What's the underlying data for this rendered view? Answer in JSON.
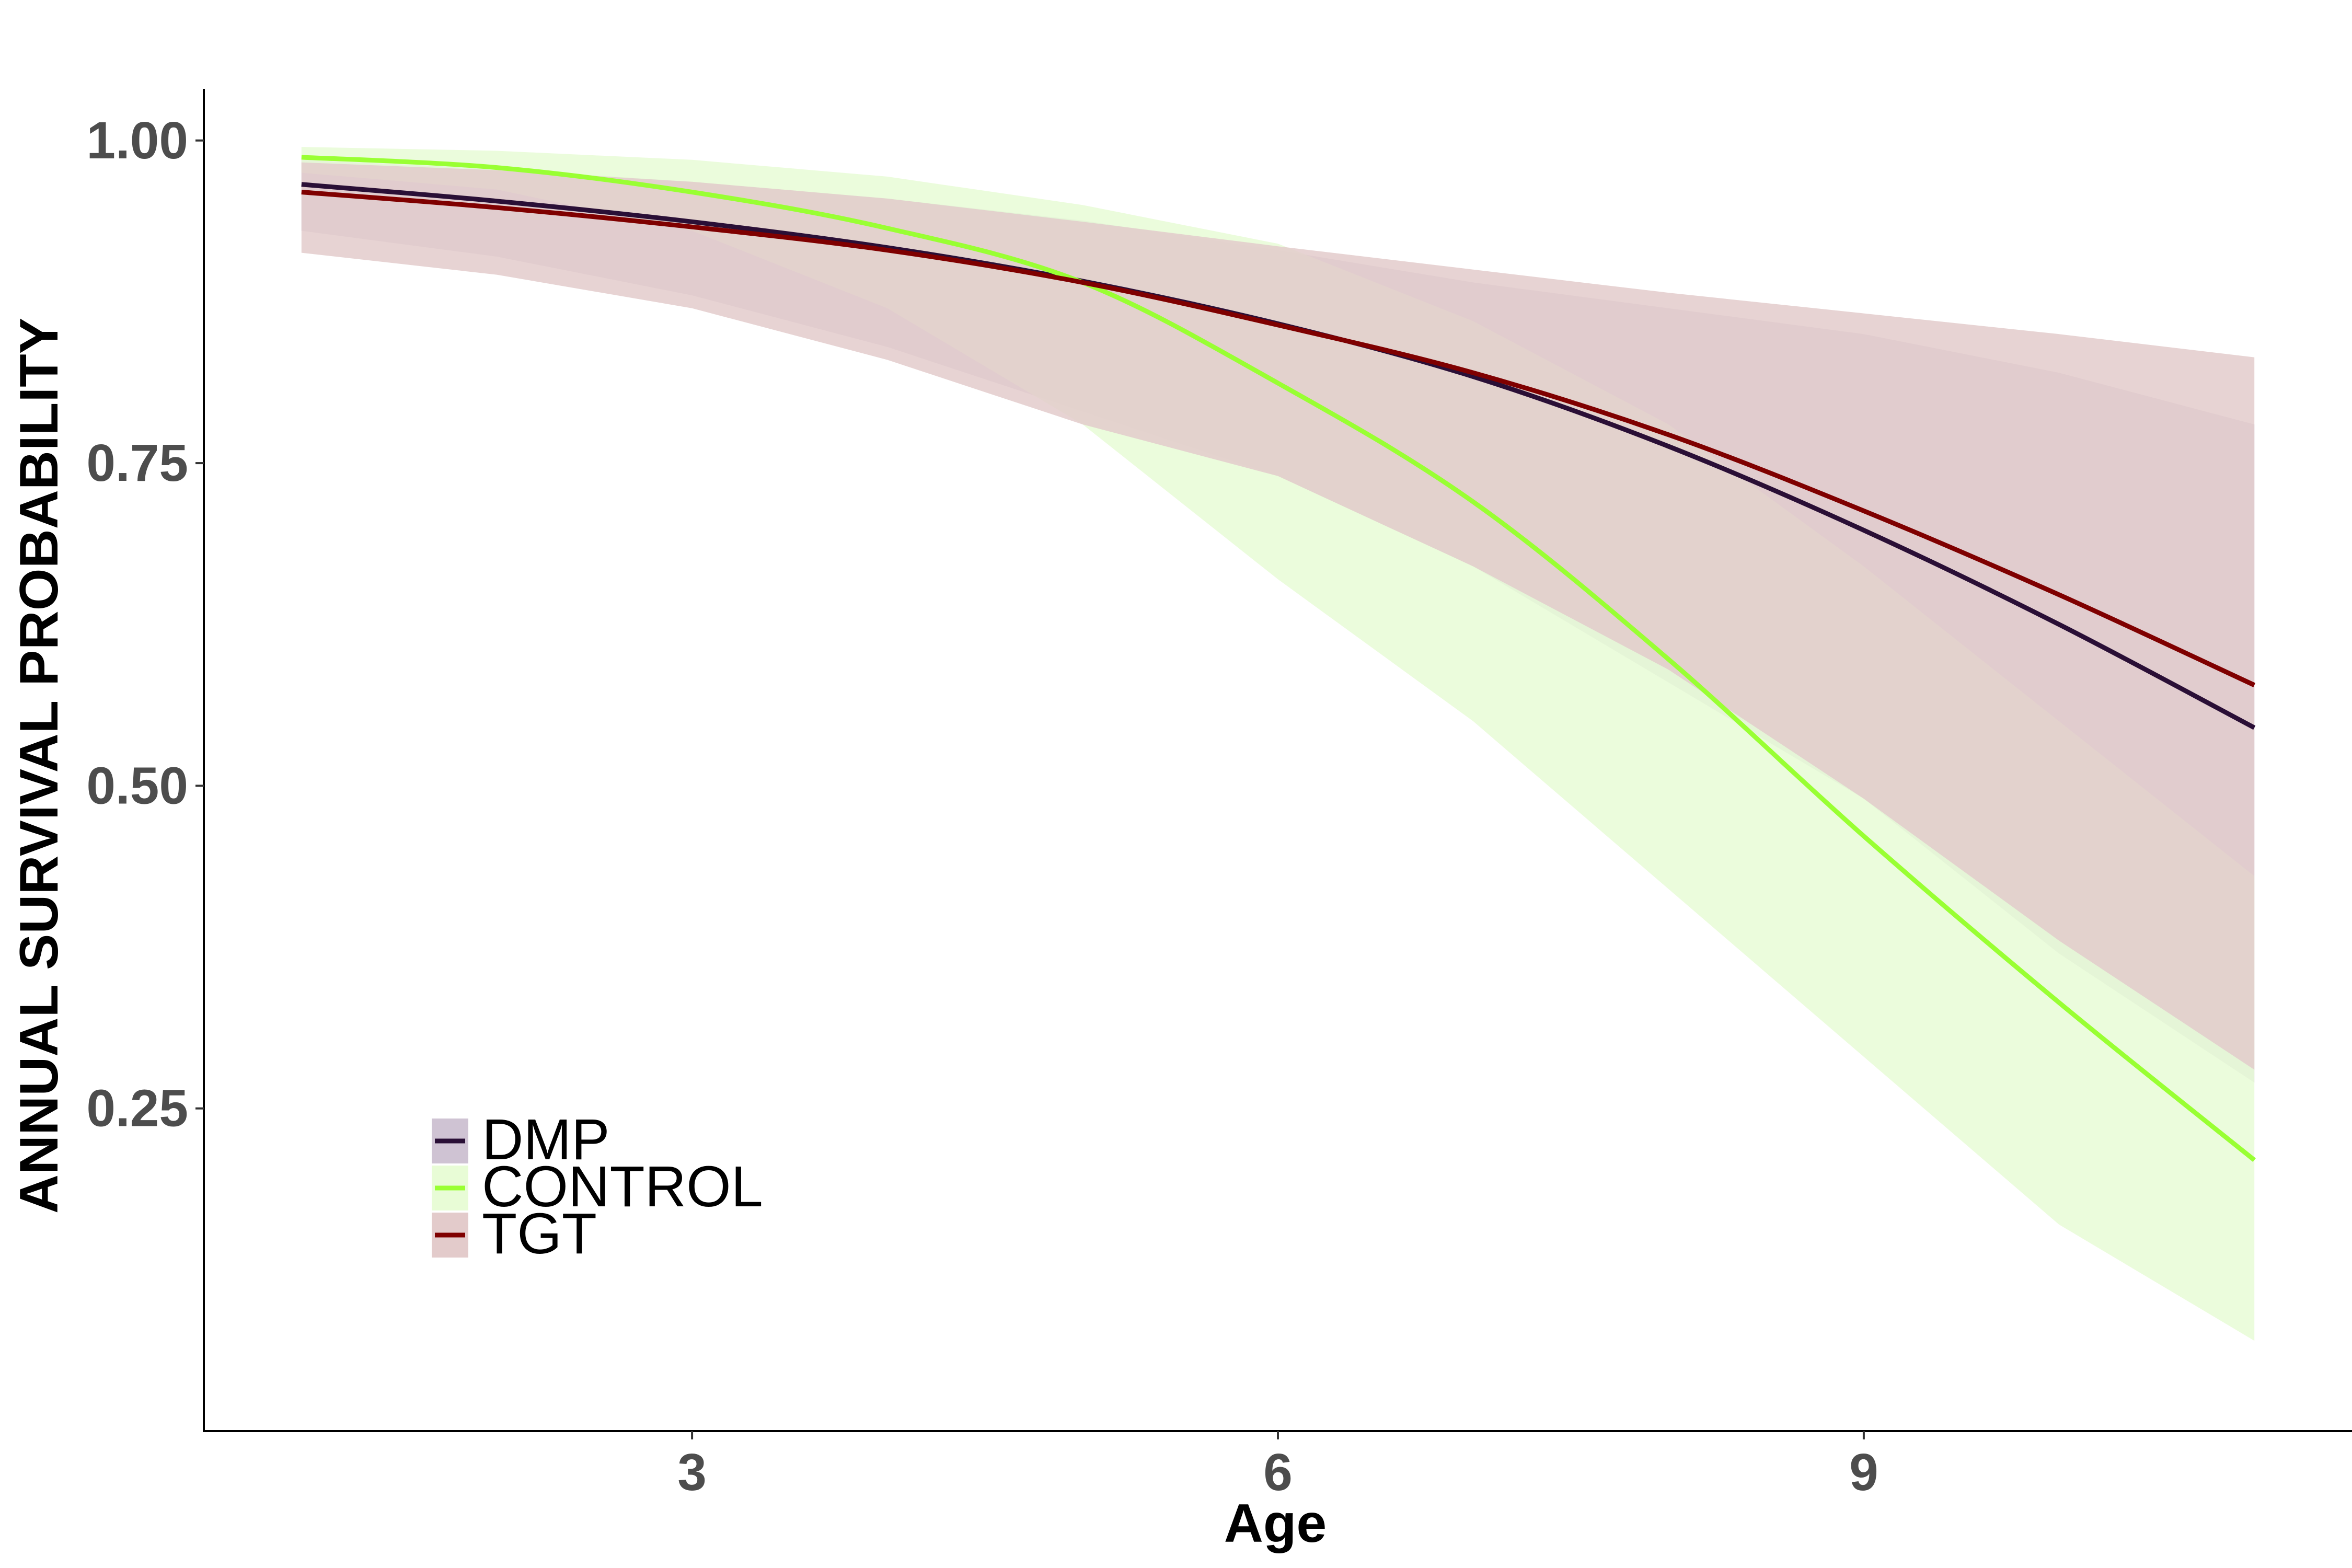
{
  "chart_data": {
    "type": "line",
    "xlabel": "Age",
    "ylabel": "ANNUAL SURVIVAL PROBABILITY",
    "xlim": [
      0.5,
      11.5
    ],
    "ylim": [
      0.0,
      1.04
    ],
    "xticks": [
      3,
      6,
      9
    ],
    "xtick_labels": [
      "3",
      "6",
      "9"
    ],
    "yticks": [
      0.25,
      0.5,
      0.75,
      1.0
    ],
    "ytick_labels": [
      "0.25",
      "0.50",
      "0.75",
      "1.00"
    ],
    "grid": false,
    "legend_position": "bottom-left",
    "x": [
      1,
      2,
      3,
      4,
      5,
      6,
      7,
      8,
      9,
      10,
      11
    ],
    "series": [
      {
        "name": "DMP",
        "color": "#2a0f36",
        "fill": "#cfc3d3",
        "values": [
          0.966,
          0.953,
          0.937,
          0.917,
          0.891,
          0.858,
          0.817,
          0.763,
          0.698,
          0.625,
          0.545
        ],
        "lower": [
          0.93,
          0.91,
          0.88,
          0.84,
          0.79,
          0.74,
          0.67,
          0.58,
          0.49,
          0.37,
          0.27
        ],
        "upper": [
          0.985,
          0.978,
          0.968,
          0.955,
          0.938,
          0.915,
          0.89,
          0.87,
          0.85,
          0.82,
          0.78
        ]
      },
      {
        "name": "CONTROL",
        "color": "#99ff33",
        "fill": "#e8fcd6",
        "values": [
          0.987,
          0.979,
          0.96,
          0.932,
          0.89,
          0.812,
          0.72,
          0.598,
          0.461,
          0.332,
          0.21
        ],
        "lower": [
          0.975,
          0.962,
          0.93,
          0.87,
          0.78,
          0.66,
          0.55,
          0.42,
          0.29,
          0.16,
          0.07
        ],
        "upper": [
          0.995,
          0.992,
          0.985,
          0.972,
          0.95,
          0.92,
          0.86,
          0.78,
          0.67,
          0.55,
          0.43
        ]
      },
      {
        "name": "TGT",
        "color": "#7f0000",
        "fill": "#e3cbcb",
        "values": [
          0.96,
          0.948,
          0.933,
          0.915,
          0.89,
          0.857,
          0.82,
          0.772,
          0.713,
          0.648,
          0.578
        ],
        "lower": [
          0.913,
          0.896,
          0.87,
          0.83,
          0.78,
          0.74,
          0.67,
          0.59,
          0.49,
          0.38,
          0.28
        ],
        "upper": [
          0.983,
          0.977,
          0.968,
          0.955,
          0.937,
          0.918,
          0.9,
          0.882,
          0.866,
          0.85,
          0.832
        ]
      }
    ]
  }
}
